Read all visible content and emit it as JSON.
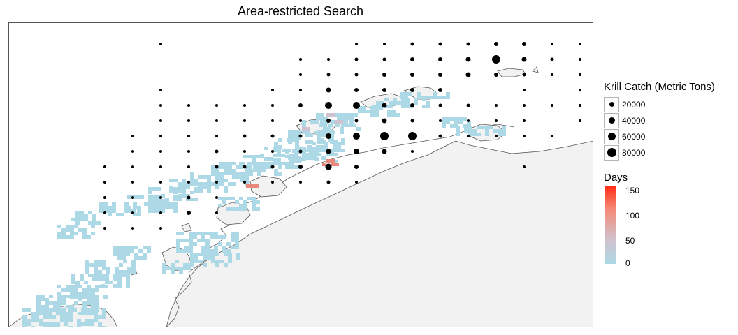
{
  "title": "Area-restricted Search",
  "legend": {
    "catch_title": "Krill Catch (Metric Tons)",
    "catch_keys": [
      {
        "label": "20000",
        "value": 20000
      },
      {
        "label": "40000",
        "value": 40000
      },
      {
        "label": "60000",
        "value": 60000
      },
      {
        "label": "80000",
        "value": 80000
      }
    ],
    "days_title": "Days",
    "days_ticks": [
      {
        "label": "150",
        "value": 150
      },
      {
        "label": "100",
        "value": 100
      },
      {
        "label": "50",
        "value": 50
      },
      {
        "label": "0",
        "value": 0
      }
    ],
    "days_range": [
      0,
      155
    ]
  },
  "colors": {
    "land": "#f2f2f2",
    "coast": "#555555",
    "low_days": "#add8e6",
    "mid_days": "#cfc3cf",
    "high_days": "#ff2a13",
    "catch_points": "#000000",
    "panel_border": "#555555"
  }
}
